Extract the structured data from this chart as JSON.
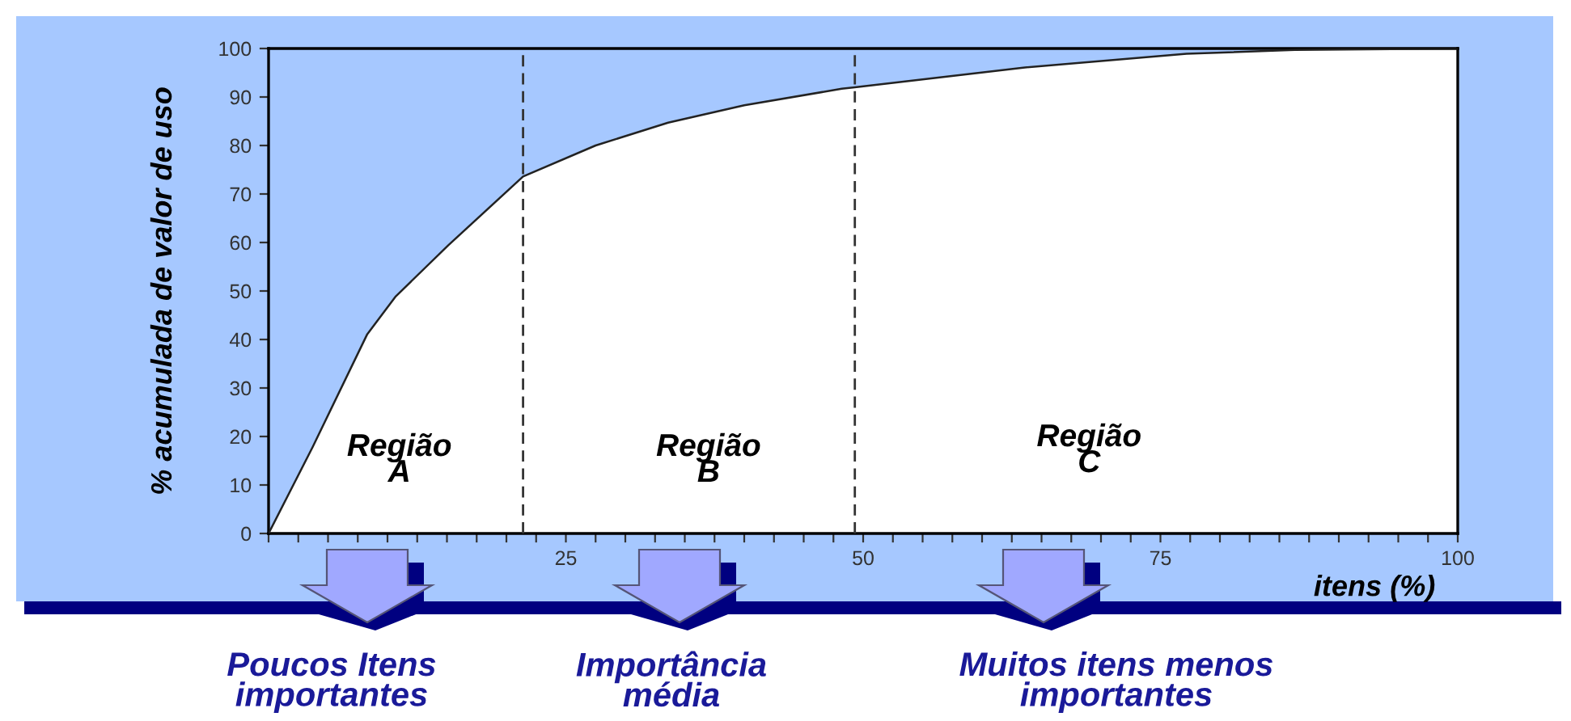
{
  "chart_data": {
    "type": "area",
    "ylabel": "% acumulada de valor de uso",
    "xlabel": "itens (%)",
    "x": [
      0,
      3.7,
      8.3,
      10.7,
      15.1,
      21.4,
      27.5,
      33.6,
      40,
      48.2,
      49.3,
      63.6,
      77.2,
      86.3,
      100
    ],
    "series": [
      {
        "color": "#ffffff",
        "values": [
          0,
          17.8,
          41.1,
          48.9,
          59.4,
          73.6,
          80,
          84.7,
          88.3,
          91.7,
          92,
          96.1,
          98.9,
          99.7,
          100
        ]
      }
    ],
    "xlim": [
      0,
      100
    ],
    "ylim": [
      0,
      100
    ],
    "xticks": [
      {
        "value": 0,
        "label": null
      },
      {
        "value": 2.5,
        "label": null
      },
      {
        "value": 5,
        "label": null
      },
      {
        "value": 7.5,
        "label": null
      },
      {
        "value": 10,
        "label": null
      },
      {
        "value": 12.5,
        "label": null
      },
      {
        "value": 15,
        "label": null
      },
      {
        "value": 17.5,
        "label": null
      },
      {
        "value": 20,
        "label": null
      },
      {
        "value": 22.5,
        "label": null
      },
      25,
      {
        "value": 27.5,
        "label": null
      },
      {
        "value": 30,
        "label": null
      },
      {
        "value": 32.5,
        "label": null
      },
      {
        "value": 35,
        "label": null
      },
      {
        "value": 37.5,
        "label": null
      },
      {
        "value": 40,
        "label": null
      },
      {
        "value": 42.5,
        "label": null
      },
      {
        "value": 45,
        "label": null
      },
      {
        "value": 47.5,
        "label": null
      },
      50,
      {
        "value": 52.5,
        "label": null
      },
      {
        "value": 55,
        "label": null
      },
      {
        "value": 57.5,
        "label": null
      },
      {
        "value": 60,
        "label": null
      },
      {
        "value": 62.5,
        "label": null
      },
      {
        "value": 65,
        "label": null
      },
      {
        "value": 67.5,
        "label": null
      },
      {
        "value": 70,
        "label": null
      },
      {
        "value": 72.5,
        "label": null
      },
      75,
      {
        "value": 77.5,
        "label": null
      },
      {
        "value": 80,
        "label": null
      },
      {
        "value": 82.5,
        "label": null
      },
      {
        "value": 85,
        "label": null
      },
      {
        "value": 87.5,
        "label": null
      },
      {
        "value": 90,
        "label": null
      },
      {
        "value": 92.5,
        "label": null
      },
      {
        "value": 95,
        "label": null
      },
      {
        "value": 97.5,
        "label": null
      },
      100
    ],
    "yticks": [
      0,
      10,
      20,
      30,
      40,
      50,
      60,
      70,
      80,
      90,
      100
    ],
    "ref_lines": [
      {
        "axis": "x",
        "value": 21.4,
        "line_style": "dashed"
      },
      {
        "axis": "x",
        "value": 49.3,
        "line_style": "dashed"
      }
    ],
    "annotations": [
      "Região\nA",
      "Região\nB",
      "Região\nC",
      "Poucos Itens\nimportantes",
      "Importância\nmédia",
      "Muitos itens menos\nimportantes"
    ],
    "grid": false
  }
}
